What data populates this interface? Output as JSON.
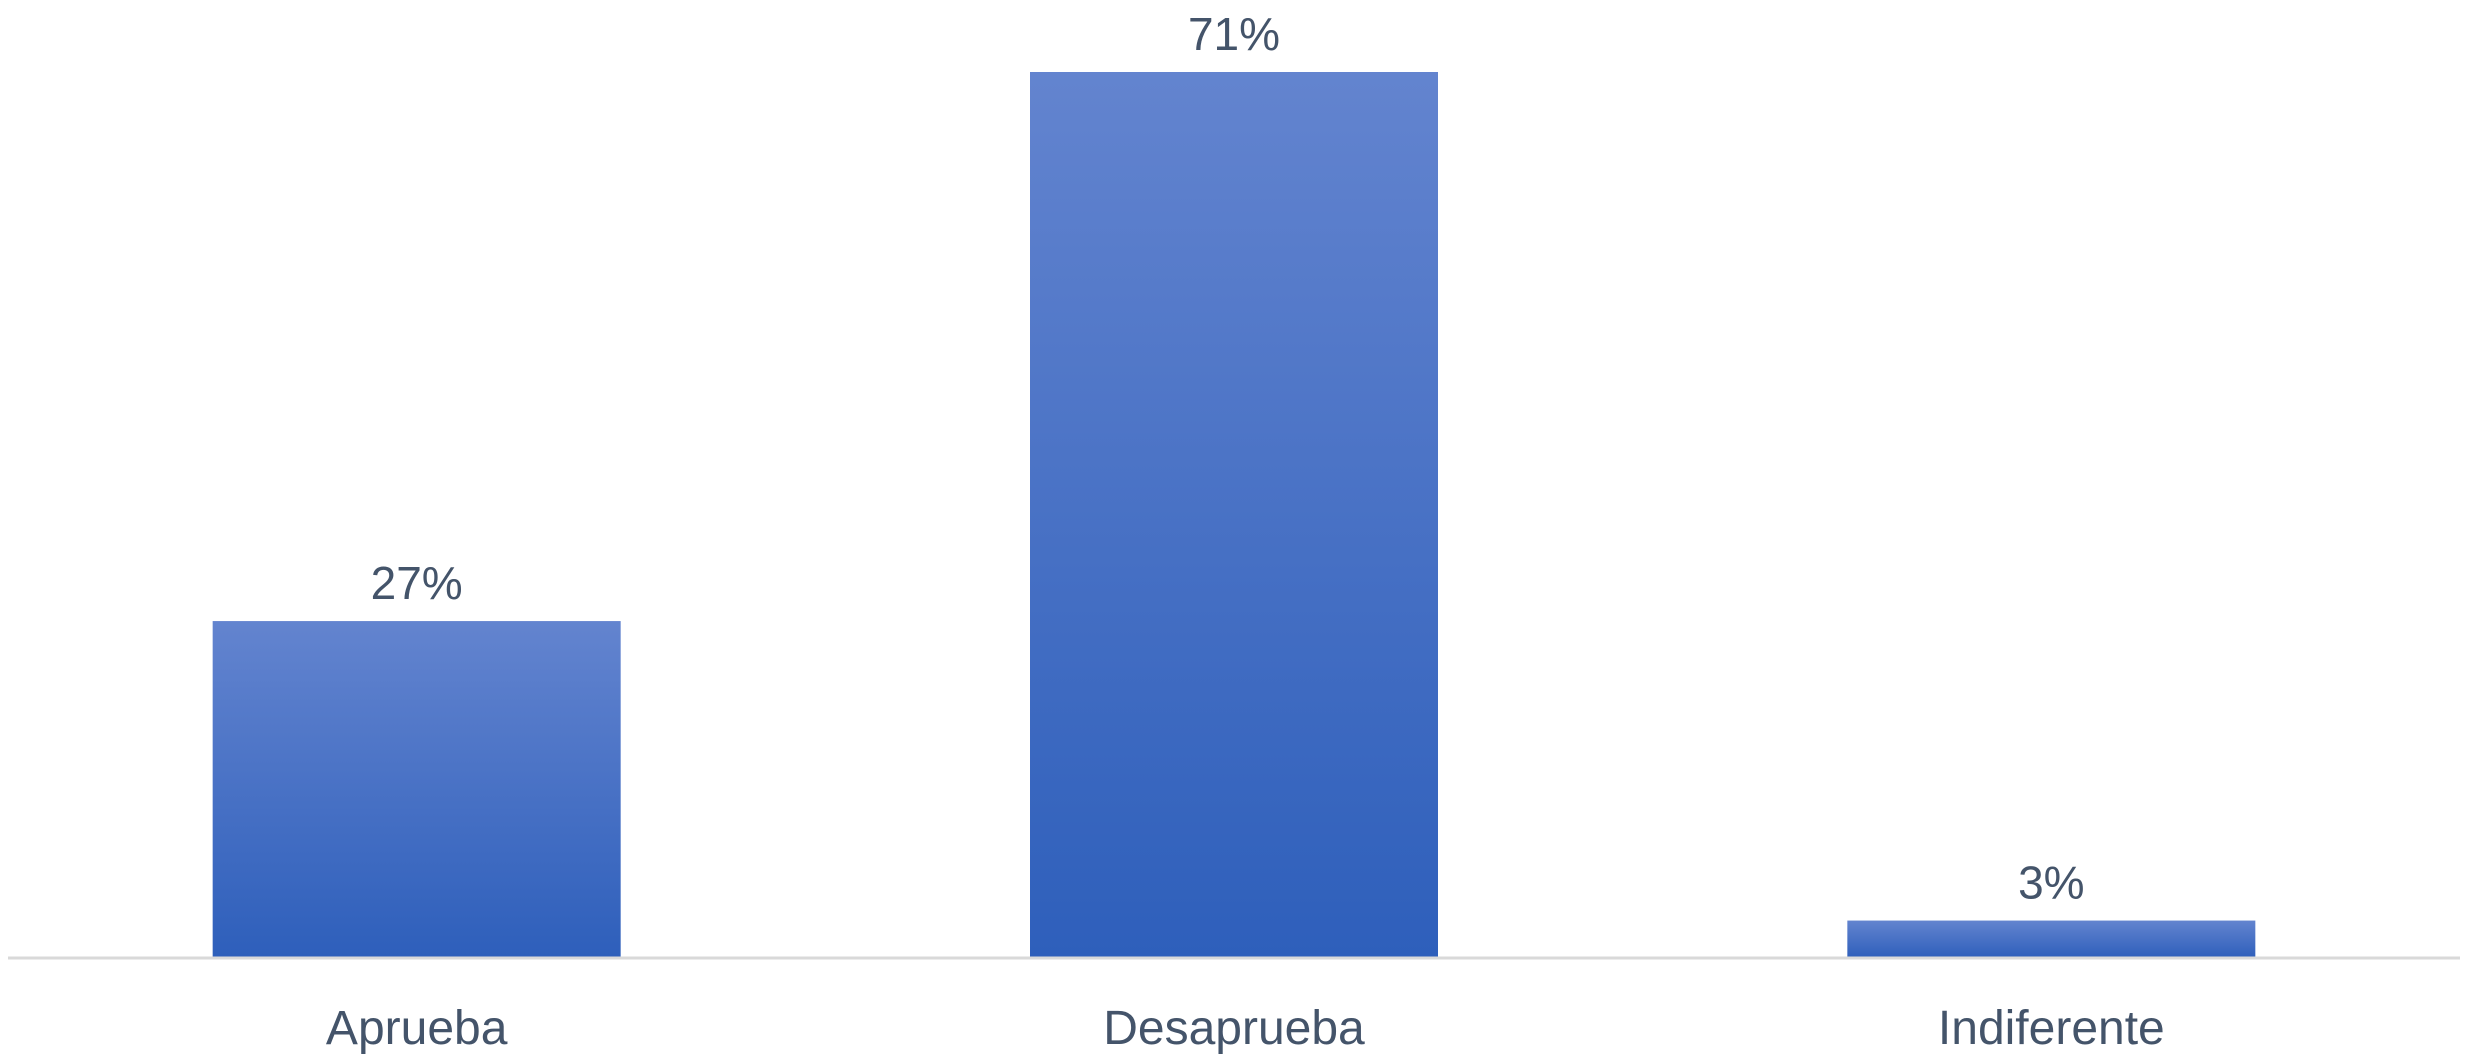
{
  "chart_data": {
    "type": "bar",
    "categories": [
      "Aprueba",
      "Desaprueba",
      "Indiferente"
    ],
    "values": [
      27,
      71,
      3
    ],
    "value_labels": [
      "27%",
      "71%",
      "3%"
    ],
    "title": "",
    "xlabel": "",
    "ylabel": "",
    "ylim": [
      0,
      71
    ],
    "grid": false,
    "legend": "none"
  },
  "colors": {
    "bar_top": "#6384cf",
    "bar_bottom": "#2e5fbb",
    "axis": "#d9d9d9",
    "text": "#44546a"
  }
}
